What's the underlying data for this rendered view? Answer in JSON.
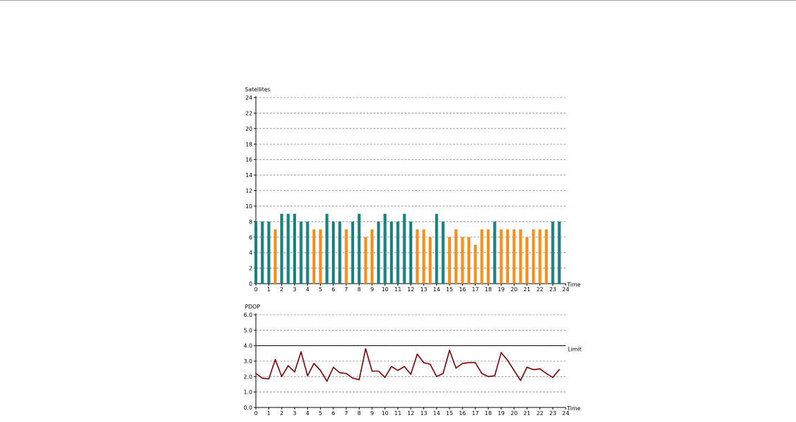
{
  "chart_data": [
    {
      "type": "bar",
      "ylabel": "Satellites",
      "xlabel": "Time",
      "ylim": [
        0,
        24
      ],
      "yticks": [
        "0",
        "2",
        "4",
        "6",
        "8",
        "10",
        "12",
        "14",
        "16",
        "18",
        "20",
        "22",
        "24"
      ],
      "xlim": [
        0,
        24
      ],
      "xticks": [
        "0",
        "1",
        "2",
        "3",
        "4",
        "5",
        "6",
        "7",
        "8",
        "9",
        "10",
        "11",
        "12",
        "13",
        "14",
        "15",
        "16",
        "17",
        "18",
        "19",
        "20",
        "21",
        "22",
        "23",
        "24"
      ],
      "grid": true,
      "bar_colors": {
        "at_least_8": "#1a8080",
        "below_8": "#f5901e"
      },
      "x": [
        0,
        0.5,
        1,
        1.5,
        2,
        2.5,
        3,
        3.5,
        4,
        4.5,
        5,
        5.5,
        6,
        6.5,
        7,
        7.5,
        8,
        8.5,
        9,
        9.5,
        10,
        10.5,
        11,
        11.5,
        12,
        12.5,
        13,
        13.5,
        14,
        14.5,
        15,
        15.5,
        16,
        16.5,
        17,
        17.5,
        18,
        18.5,
        19,
        19.5,
        20,
        20.5,
        21,
        21.5,
        22,
        22.5,
        23,
        23.5
      ],
      "values": [
        8,
        8,
        8,
        7,
        9,
        9,
        9,
        8,
        8,
        7,
        7,
        9,
        8,
        8,
        7,
        8,
        9,
        6,
        7,
        8,
        9,
        8,
        8,
        9,
        8,
        7,
        7,
        6,
        9,
        8,
        6,
        7,
        6,
        6,
        5,
        7,
        7,
        8,
        7,
        7,
        7,
        7,
        6,
        7,
        7,
        7,
        8,
        8
      ]
    },
    {
      "type": "line",
      "ylabel": "PDOP",
      "xlabel": "Time",
      "ylim": [
        0,
        6
      ],
      "yticks": [
        "0.0",
        "1.0",
        "2.0",
        "3.0",
        "4.0",
        "5.0",
        "6.0"
      ],
      "xlim": [
        0,
        24
      ],
      "xticks": [
        "0",
        "1",
        "2",
        "3",
        "4",
        "5",
        "6",
        "7",
        "8",
        "9",
        "10",
        "11",
        "12",
        "13",
        "14",
        "15",
        "16",
        "17",
        "18",
        "19",
        "20",
        "21",
        "22",
        "23",
        "24"
      ],
      "grid": true,
      "limit": {
        "label": "Limit",
        "value": 4.0
      },
      "line_color": "#7a0000",
      "x": [
        0,
        0.5,
        1,
        1.5,
        2,
        2.5,
        3,
        3.5,
        4,
        4.5,
        5,
        5.5,
        6,
        6.5,
        7,
        7.5,
        8,
        8.5,
        9,
        9.5,
        10,
        10.5,
        11,
        11.5,
        12,
        12.5,
        13,
        13.5,
        14,
        14.5,
        15,
        15.5,
        16,
        16.5,
        17,
        17.5,
        18,
        18.5,
        19,
        19.5,
        20,
        20.5,
        21,
        21.5,
        22,
        22.5,
        23,
        23.5
      ],
      "values": [
        2.2,
        1.9,
        1.85,
        3.1,
        2.0,
        2.7,
        2.3,
        3.6,
        2.05,
        2.85,
        2.4,
        1.7,
        2.6,
        2.25,
        2.2,
        1.9,
        1.8,
        3.8,
        2.35,
        2.35,
        1.95,
        2.65,
        2.4,
        2.65,
        2.15,
        3.45,
        2.9,
        2.8,
        2.0,
        2.2,
        3.7,
        2.55,
        2.85,
        2.9,
        2.9,
        2.2,
        2.0,
        2.05,
        3.55,
        3.05,
        2.4,
        1.75,
        2.6,
        2.45,
        2.5,
        2.2,
        1.95,
        2.45
      ]
    }
  ]
}
